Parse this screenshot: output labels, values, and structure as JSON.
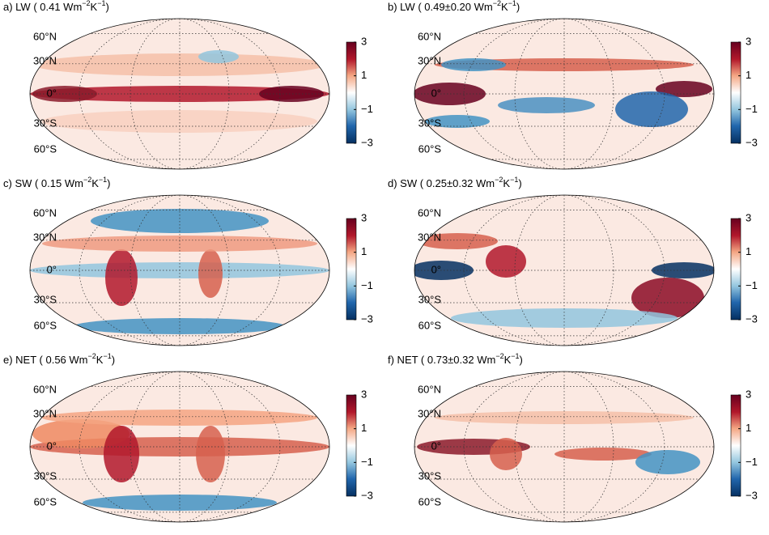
{
  "panels": [
    {
      "title": {
        "prefix": "a) LW ( 0.41 Wm",
        "exp1": "−2",
        "mid": "K",
        "exp2": "−1",
        "suffix": ")"
      },
      "lat_labels": [
        "60°N",
        "30°N",
        "0°",
        "30°S",
        "60°S"
      ],
      "colorbar": {
        "clim": [
          -3,
          3
        ],
        "ticks": [
          3,
          1,
          {
            "value": -1,
            "label": "−1"
          },
          {
            "value": -3,
            "label": "−3"
          }
        ]
      }
    },
    {
      "title": {
        "prefix": "b) LW ( 0.49±0.20 Wm",
        "exp1": "−2",
        "mid": "K",
        "exp2": "−1",
        "suffix": ")"
      },
      "lat_labels": [
        "60°N",
        "30°N",
        "0°",
        "30°S",
        "60°S"
      ],
      "colorbar": {
        "clim": [
          -3,
          3
        ],
        "ticks": [
          3,
          1,
          {
            "value": -1,
            "label": "−1"
          },
          {
            "value": -3,
            "label": "−3"
          }
        ]
      }
    },
    {
      "title": {
        "prefix": "c) SW ( 0.15 Wm",
        "exp1": "−2",
        "mid": "K",
        "exp2": "−1",
        "suffix": ")"
      },
      "lat_labels": [
        "60°N",
        "30°N",
        "0°",
        "30°S",
        "60°S"
      ],
      "colorbar": {
        "clim": [
          -3,
          3
        ],
        "ticks": [
          3,
          1,
          {
            "value": -1,
            "label": "−1"
          },
          {
            "value": -3,
            "label": "−3"
          }
        ]
      }
    },
    {
      "title": {
        "prefix": "d) SW ( 0.25±0.32 Wm",
        "exp1": "−2",
        "mid": "K",
        "exp2": "−1",
        "suffix": ")"
      },
      "lat_labels": [
        "60°N",
        "30°N",
        "0°",
        "30°S",
        "60°S"
      ],
      "colorbar": {
        "clim": [
          -3,
          3
        ],
        "ticks": [
          3,
          1,
          {
            "value": -1,
            "label": "−1"
          },
          {
            "value": -3,
            "label": "−3"
          }
        ]
      }
    },
    {
      "title": {
        "prefix": "e) NET ( 0.56 Wm",
        "exp1": "−2",
        "mid": "K",
        "exp2": "−1",
        "suffix": ")"
      },
      "lat_labels": [
        "60°N",
        "30°N",
        "0°",
        "30°S",
        "60°S"
      ],
      "colorbar": {
        "clim": [
          -3,
          3
        ],
        "ticks": [
          3,
          1,
          {
            "value": -1,
            "label": "−1"
          },
          {
            "value": -3,
            "label": "−3"
          }
        ]
      }
    },
    {
      "title": {
        "prefix": "f) NET ( 0.73±0.32 Wm",
        "exp1": "−2",
        "mid": "K",
        "exp2": "−1",
        "suffix": ")"
      },
      "lat_labels": [
        "60°N",
        "30°N",
        "0°",
        "30°S",
        "60°S"
      ],
      "colorbar": {
        "clim": [
          -3,
          3
        ],
        "ticks": [
          3,
          1,
          {
            "value": -1,
            "label": "−1"
          },
          {
            "value": -3,
            "label": "−3"
          }
        ]
      }
    }
  ]
}
